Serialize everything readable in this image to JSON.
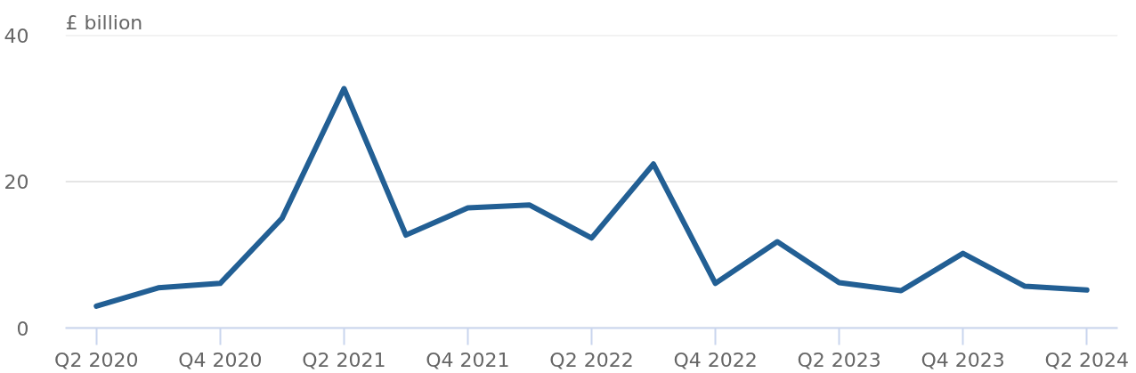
{
  "chart_data": {
    "type": "line",
    "ylabel": "£ billion",
    "categories": [
      "Q2 2020",
      null,
      "Q4 2020",
      null,
      "Q2 2021",
      null,
      "Q4 2021",
      null,
      "Q2 2022",
      null,
      "Q4 2022",
      null,
      "Q2 2023",
      null,
      "Q4 2023",
      null,
      "Q2 2024"
    ],
    "series": [
      {
        "color": "#225f94",
        "values": [
          3.0,
          5.5,
          6.1,
          15.0,
          32.7,
          12.7,
          16.4,
          16.8,
          12.3,
          22.4,
          6.1,
          11.8,
          6.2,
          5.1,
          10.2,
          5.7,
          5.2
        ]
      }
    ],
    "ylim": [
      0,
      40
    ],
    "yticks": [
      0,
      20,
      40
    ],
    "grid": "y",
    "line_style": "solid"
  }
}
